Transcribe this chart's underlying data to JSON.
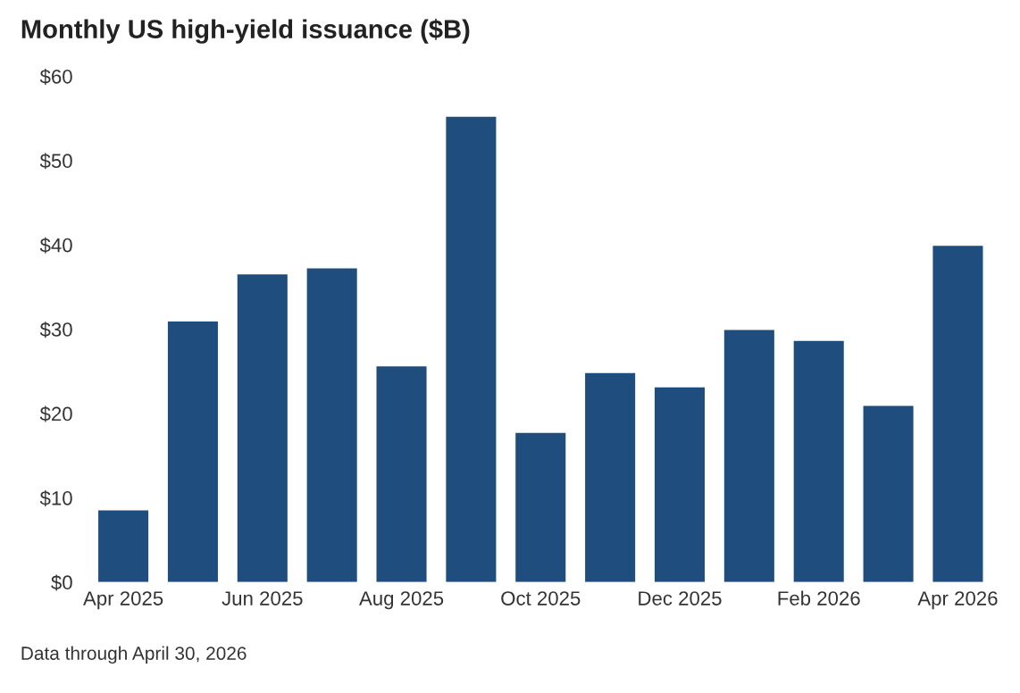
{
  "chart_data": {
    "type": "bar",
    "title": "Monthly US high-yield issuance ($B)",
    "categories": [
      "Apr 2025",
      null,
      "Jun 2025",
      null,
      "Aug 2025",
      null,
      "Oct 2025",
      null,
      "Dec 2025",
      null,
      "Feb 2026",
      null,
      "Apr 2026"
    ],
    "values": [
      8.5,
      30.9,
      36.5,
      37.2,
      25.6,
      55.2,
      17.7,
      24.8,
      23.1,
      29.9,
      28.6,
      20.9,
      39.9
    ],
    "color": "#1f4e7e",
    "ylim": [
      0,
      60
    ],
    "yticks": [
      {
        "value": 0,
        "label": "$0"
      },
      {
        "value": 10,
        "label": "$10"
      },
      {
        "value": 20,
        "label": "$20"
      },
      {
        "value": 30,
        "label": "$30"
      },
      {
        "value": 40,
        "label": "$40"
      },
      {
        "value": 50,
        "label": "$50"
      },
      {
        "value": 60,
        "label": "$60"
      }
    ],
    "grid": false,
    "annotations": [
      "Data through April 30, 2026"
    ]
  }
}
